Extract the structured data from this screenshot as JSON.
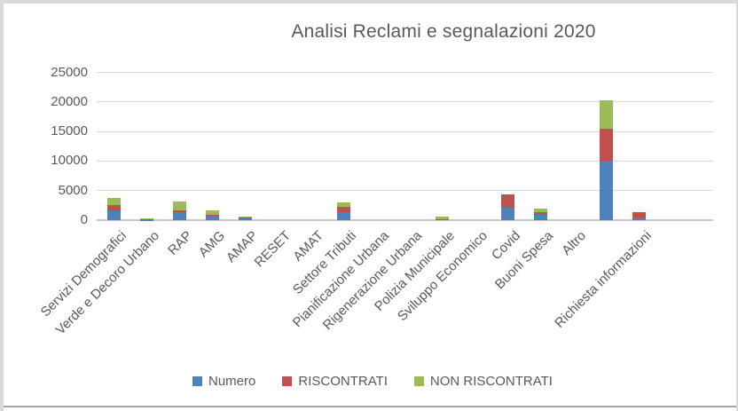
{
  "frame": {
    "border_color": "#d9d9d9",
    "bottom_edge_color": "#a6a6a6",
    "background": "#ffffff"
  },
  "chart_data": {
    "type": "bar",
    "stacked": true,
    "title": "Analisi Reclami e segnalazioni 2020",
    "title_color": "#595959",
    "grid": true,
    "gridline_color": "#d9d9d9",
    "legend_position": "bottom",
    "xlabel": "",
    "ylabel": "",
    "ylim": [
      0,
      25000
    ],
    "ytick_step": 5000,
    "yticks": [
      "0",
      "5000",
      "10000",
      "15000",
      "20000",
      "25000"
    ],
    "categories": [
      "Servizi Demografici",
      "Verde e Decoro Urbano",
      "RAP",
      "AMG",
      "AMAP",
      "RESET",
      "AMAT",
      "Settore Tributi",
      "Pianificazione Urbana",
      "Rigenerazione Urbana",
      "Polizia Municipale",
      "Sviluppo Economico",
      "Covid",
      "Buoni Spesa",
      "Altro",
      "",
      "Richiesta informazioni"
    ],
    "series": [
      {
        "name": "Numero",
        "color": "#4F81BD",
        "values": [
          1500,
          50,
          1350,
          700,
          300,
          0,
          0,
          1400,
          0,
          0,
          100,
          0,
          2100,
          900,
          0,
          10000,
          500
        ]
      },
      {
        "name": "RISCONTRATI",
        "color": "#C0504D",
        "values": [
          1050,
          50,
          350,
          150,
          100,
          0,
          0,
          900,
          0,
          0,
          50,
          0,
          2300,
          400,
          0,
          5500,
          900
        ]
      },
      {
        "name": "NON RISCONTRATI",
        "color": "#9BBB59",
        "values": [
          1200,
          200,
          1400,
          800,
          200,
          0,
          0,
          750,
          0,
          0,
          400,
          0,
          0,
          700,
          0,
          4800,
          0
        ]
      }
    ]
  }
}
